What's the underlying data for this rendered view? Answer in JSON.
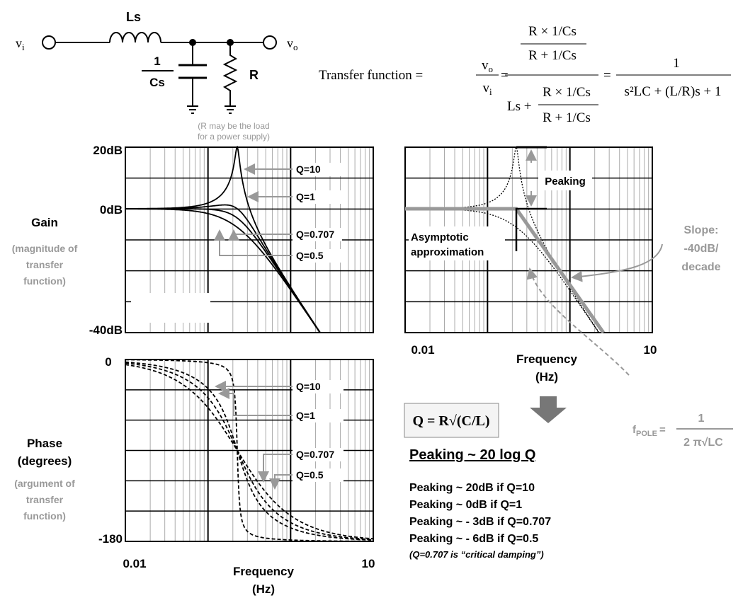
{
  "circuit": {
    "vi": "v",
    "vi_sub": "i",
    "inductor": "Ls",
    "cap_num": "1",
    "cap_den": "Cs",
    "resistor": "R",
    "vo": "v",
    "vo_sub": "o",
    "note": [
      "(R may be the load",
      "for a power supply)"
    ]
  },
  "transfer_function": {
    "label": "Transfer function =",
    "ratio_num": "v",
    "ratio_num_sub": "o",
    "ratio_den": "v",
    "ratio_den_sub": "i",
    "eq1": "=",
    "top_num": "R × 1/Cs",
    "top_den": "R + 1/Cs",
    "bottom_ls": "Ls +",
    "bottom_num": "R × 1/Cs",
    "bottom_den": "R + 1/Cs",
    "eq2": "=",
    "result_num": "1",
    "result_den": "s²LC + (L/R)s + 1"
  },
  "gain_chart": {
    "title": "Gain",
    "subtitle": [
      "(magnitude of",
      "transfer",
      "function)"
    ],
    "yticks": [
      "20dB",
      "0dB",
      "-40dB"
    ],
    "curve_labels": [
      "Q=10",
      "Q=1",
      "Q=0.707",
      "Q=0.5"
    ]
  },
  "phase_chart": {
    "title": [
      "Phase",
      "(degrees)"
    ],
    "subtitle": [
      "(argument of",
      "transfer",
      "function)"
    ],
    "yticks": [
      "0",
      "-180"
    ],
    "xticks": [
      "0.01",
      "10"
    ],
    "xlabel": [
      "Frequency",
      "(Hz)"
    ],
    "curve_labels": [
      "Q=10",
      "Q=1",
      "Q=0.707",
      "Q=0.5"
    ]
  },
  "asymptote_chart": {
    "peaking": "Peaking",
    "asymptotic": [
      "Asymptotic",
      "approximation"
    ],
    "slope": [
      "Slope:",
      "-40dB/",
      "decade"
    ],
    "xticks": [
      "0.01",
      "10"
    ],
    "xlabel": [
      "Frequency",
      "(Hz)"
    ],
    "fpole": {
      "f": "f",
      "sub": "POLE",
      "eq": "=",
      "num": "1",
      "den": "2 π√LC"
    }
  },
  "q_formula": "Q = R√(C/L)",
  "peaking": {
    "title": "Peaking ~ 20 log Q",
    "lines": [
      "Peaking ~ 20dB if Q=10",
      "Peaking ~ 0dB if Q=1",
      "Peaking ~ - 3dB if Q=0.707",
      "Peaking ~ - 6dB if Q=0.5"
    ],
    "note": "(Q=0.707 is “critical damping”)"
  }
}
